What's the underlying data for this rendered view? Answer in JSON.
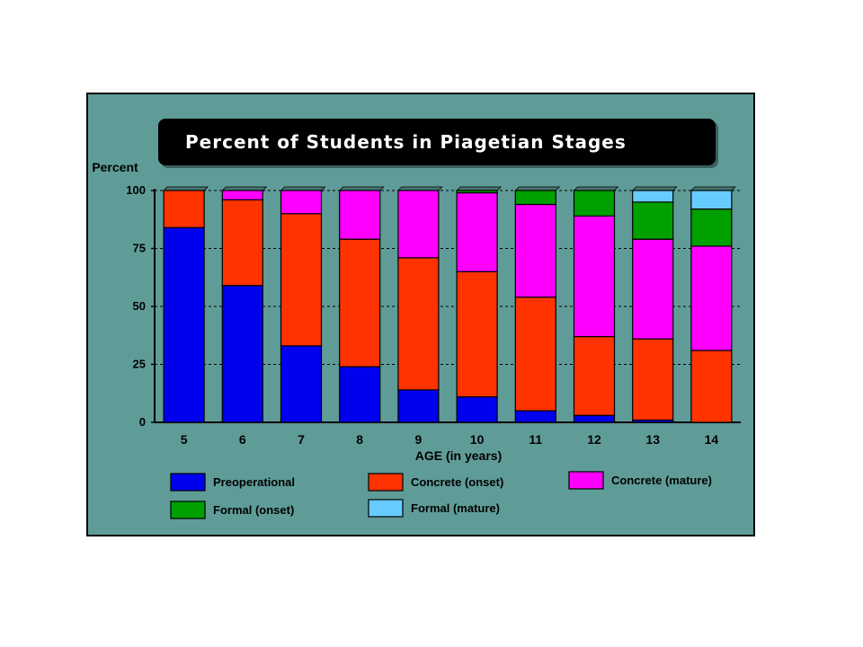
{
  "chart_data": {
    "type": "bar",
    "stacked": true,
    "title": "Percent of Students in Piagetian Stages",
    "ylabel": "Percent",
    "xlabel": "AGE (in years)",
    "ylim": [
      0,
      100
    ],
    "yticks": [
      0,
      25,
      50,
      75,
      100
    ],
    "grid": "dashed horizontal",
    "legend_position": "bottom",
    "categories": [
      "5",
      "6",
      "7",
      "8",
      "9",
      "10",
      "11",
      "12",
      "13",
      "14"
    ],
    "series": [
      {
        "name": "Preoperational",
        "color": "#0000ee",
        "values": [
          84,
          59,
          33,
          24,
          14,
          11,
          5,
          3,
          1,
          0
        ]
      },
      {
        "name": "Concrete (onset)",
        "color": "#ff3300",
        "values": [
          16,
          37,
          57,
          55,
          57,
          54,
          49,
          34,
          35,
          31
        ]
      },
      {
        "name": "Concrete (mature)",
        "color": "#ff00ff",
        "values": [
          0,
          4,
          10,
          21,
          29,
          34,
          40,
          52,
          43,
          45
        ]
      },
      {
        "name": "Formal (onset)",
        "color": "#00a000",
        "values": [
          0,
          0,
          0,
          0,
          0,
          1,
          6,
          11,
          16,
          16
        ]
      },
      {
        "name": "Formal (mature)",
        "color": "#66ccff",
        "values": [
          0,
          0,
          0,
          0,
          0,
          0,
          0,
          0,
          5,
          8
        ]
      }
    ]
  }
}
